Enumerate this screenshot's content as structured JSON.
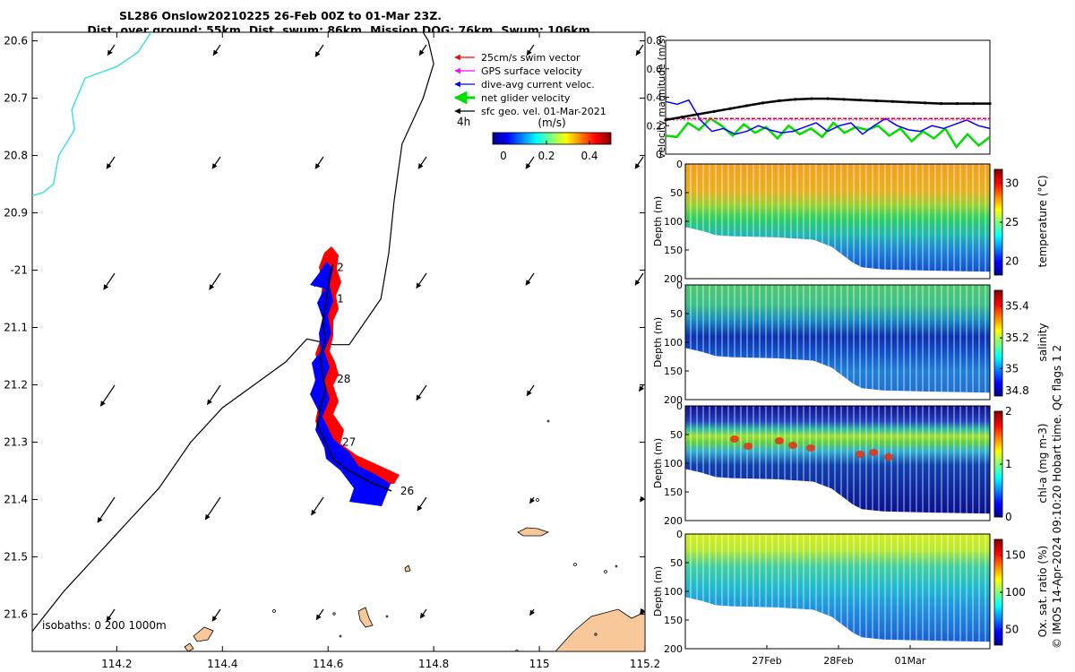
{
  "title": {
    "line1": "SL286 Onslow20210225 26-Feb 00Z to 01-Mar 23Z.",
    "line2": "Dist. over ground: 55km. Dist. swum: 86km. Mission DOG: 76km. Swum: 106km"
  },
  "legend": [
    {
      "label": "25cm/s swim vector",
      "color": "#ff0000"
    },
    {
      "label": "GPS surface velocity",
      "color": "#ff00ff"
    },
    {
      "label": "dive-avg current veloc.",
      "color": "#0000ff"
    },
    {
      "label": "net glider velocity",
      "color": "#00dd00"
    },
    {
      "label": "sfc geo. vel. 01-Mar-2021",
      "color": "#000000"
    }
  ],
  "map": {
    "interval_label": "4h",
    "colorbar": {
      "label": "(m/s)",
      "ticks": [
        "0",
        "0.2",
        "0.4"
      ],
      "range": [
        -0.05,
        0.5
      ]
    },
    "isobaths_label": "isobaths: 0   200   1000m",
    "lon_ticks": [
      "114.2",
      "114.4",
      "114.6",
      "114.8",
      "115",
      "115.2"
    ],
    "lat_ticks": [
      "20.6",
      "20.7",
      "20.8",
      "20.9",
      "-21",
      "21.1",
      "21.2",
      "21.3",
      "21.4",
      "21.5",
      "21.6"
    ],
    "day_labels": [
      {
        "text": "2",
        "lon": 114.61,
        "lat": -20.995
      },
      {
        "text": "1",
        "lon": 114.61,
        "lat": -21.05
      },
      {
        "text": "28",
        "lon": 114.61,
        "lat": -21.19
      },
      {
        "text": "27",
        "lon": 114.62,
        "lat": -21.3
      },
      {
        "text": "26",
        "lon": 114.73,
        "lat": -21.385
      }
    ]
  },
  "velocity_panel": {
    "ylabel": "velocity magnitude (m/s)",
    "yticks": [
      "0",
      "0.2",
      "0.4",
      "0.6",
      "0.8"
    ],
    "ylim": [
      0,
      0.8
    ]
  },
  "sections": [
    {
      "clabel": "temperature (°C)",
      "cticks": [
        "30",
        "25",
        "20"
      ],
      "ylabel": "Depth (m)"
    },
    {
      "clabel": "salinity",
      "cticks": [
        "35.4",
        "35.2",
        "35",
        "34.8"
      ],
      "ylabel": "Depth (m)"
    },
    {
      "clabel": "chl-a (mg m-3)",
      "cticks": [
        "2",
        "1",
        "0"
      ],
      "ylabel": "Depth (m)"
    },
    {
      "clabel": "Ox. sat. ratio (%)",
      "cticks": [
        "150",
        "100",
        "50"
      ],
      "ylabel": "Depth (m)"
    }
  ],
  "depth_ticks": [
    "0",
    "50",
    "100",
    "150",
    "200"
  ],
  "time_ticks": [
    "27Feb",
    "28Feb",
    "01Mar"
  ],
  "side_note": "© IMOS 14-Apr-2024 09:10:20 Hobart time. QC flags 1  2",
  "chart_data": {
    "type": "scatter",
    "title": "SL286 Onslow20210225 26-Feb 00Z to 01-Mar 23Z.",
    "xlabel": "",
    "ylabel": "",
    "xlim": [
      114.04,
      115.2
    ],
    "ylim": [
      -21.665,
      -20.585
    ],
    "glider_track": [
      [
        114.72,
        -21.385
      ],
      [
        114.68,
        -21.37
      ],
      [
        114.64,
        -21.35
      ],
      [
        114.61,
        -21.33
      ],
      [
        114.595,
        -21.3
      ],
      [
        114.58,
        -21.27
      ],
      [
        114.585,
        -21.24
      ],
      [
        114.595,
        -21.21
      ],
      [
        114.59,
        -21.18
      ],
      [
        114.585,
        -21.15
      ],
      [
        114.595,
        -21.12
      ],
      [
        114.59,
        -21.09
      ],
      [
        114.595,
        -21.06
      ],
      [
        114.6,
        -21.03
      ],
      [
        114.605,
        -21.0
      ],
      [
        114.61,
        -20.99
      ]
    ],
    "isobath_200m": [
      [
        114.04,
        -21.63
      ],
      [
        114.1,
        -21.56
      ],
      [
        114.16,
        -21.5
      ],
      [
        114.22,
        -21.44
      ],
      [
        114.28,
        -21.38
      ],
      [
        114.34,
        -21.3
      ],
      [
        114.4,
        -21.24
      ],
      [
        114.46,
        -21.2
      ],
      [
        114.52,
        -21.16
      ],
      [
        114.56,
        -21.12
      ],
      [
        114.61,
        -21.13
      ],
      [
        114.64,
        -21.13
      ],
      [
        114.7,
        -21.05
      ],
      [
        114.715,
        -20.97
      ],
      [
        114.725,
        -20.88
      ],
      [
        114.74,
        -20.78
      ],
      [
        114.78,
        -20.7
      ],
      [
        114.8,
        -20.64
      ],
      [
        114.79,
        -20.6
      ],
      [
        114.78,
        -20.585
      ]
    ],
    "isobath_0m": [
      [
        114.04,
        -20.87
      ],
      [
        114.06,
        -20.865
      ],
      [
        114.08,
        -20.85
      ],
      [
        114.09,
        -20.8
      ],
      [
        114.11,
        -20.77
      ],
      [
        114.12,
        -20.755
      ],
      [
        114.115,
        -20.72
      ],
      [
        114.14,
        -20.665
      ],
      [
        114.2,
        -20.645
      ],
      [
        114.24,
        -20.62
      ],
      [
        114.265,
        -20.585
      ]
    ],
    "velocity_series": [
      {
        "name": "25cm/s swim vector",
        "color": "#ff0000",
        "values": [
          0.25,
          0.25
        ]
      },
      {
        "name": "GPS surface velocity",
        "color": "#ff00ff",
        "values": [
          0.24,
          0.24
        ]
      },
      {
        "name": "dive-avg current veloc.",
        "color": "#0000ff",
        "values": [
          0.37,
          0.35,
          0.38,
          0.24,
          0.16,
          0.18,
          0.14,
          0.16,
          0.2,
          0.17,
          0.15,
          0.16,
          0.19,
          0.22,
          0.16,
          0.2,
          0.22,
          0.14,
          0.2,
          0.25,
          0.2,
          0.17,
          0.16,
          0.2,
          0.18,
          0.21,
          0.24,
          0.2,
          0.18
        ]
      },
      {
        "name": "net glider velocity",
        "color": "#00dd00",
        "values": [
          0.13,
          0.12,
          0.22,
          0.17,
          0.25,
          0.2,
          0.13,
          0.21,
          0.15,
          0.19,
          0.11,
          0.2,
          0.14,
          0.18,
          0.12,
          0.22,
          0.15,
          0.19,
          0.17,
          0.2,
          0.13,
          0.18,
          0.09,
          0.16,
          0.11,
          0.18,
          0.05,
          0.14,
          0.06,
          0.12
        ]
      },
      {
        "name": "sfc geo. vel. 01-Mar-2021",
        "color": "#000000",
        "values": [
          0.24,
          0.26,
          0.28,
          0.3,
          0.32,
          0.34,
          0.36,
          0.375,
          0.385,
          0.39,
          0.39,
          0.385,
          0.38,
          0.375,
          0.37,
          0.365,
          0.36,
          0.355,
          0.355,
          0.355,
          0.355
        ]
      }
    ]
  }
}
